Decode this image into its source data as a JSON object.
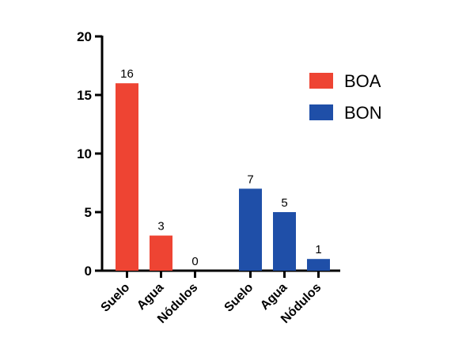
{
  "chart_data": {
    "type": "bar",
    "title": "",
    "xlabel": "",
    "ylabel": "",
    "ylim": [
      0,
      20
    ],
    "yticks": [
      0,
      5,
      10,
      15,
      20
    ],
    "grid": false,
    "legend_position": "top-right",
    "series": [
      {
        "name": "BOA",
        "color": "#EE4433",
        "categories": [
          "Suelo",
          "Agua",
          "Nódulos"
        ],
        "values": [
          16,
          3,
          0
        ]
      },
      {
        "name": "BON",
        "color": "#1F4FA8",
        "categories": [
          "Suelo",
          "Agua",
          "Nódulos"
        ],
        "values": [
          7,
          5,
          1
        ]
      }
    ]
  }
}
